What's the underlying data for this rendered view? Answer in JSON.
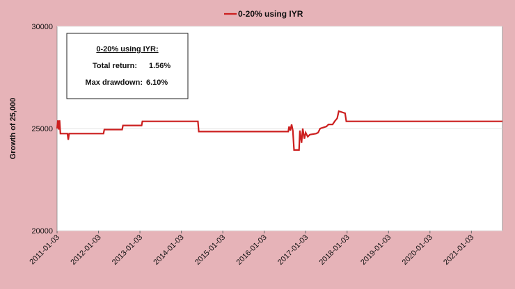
{
  "chart_data": {
    "type": "line",
    "y_label": "Growth of 25,000",
    "xlim": [
      2011.0,
      2021.75
    ],
    "xticks": [
      {
        "value": 2011.0,
        "label": "2011-01-03"
      },
      {
        "value": 2012.0,
        "label": "2012-01-03"
      },
      {
        "value": 2013.0,
        "label": "2013-01-03"
      },
      {
        "value": 2014.0,
        "label": "2014-01-03"
      },
      {
        "value": 2015.0,
        "label": "2015-01-03"
      },
      {
        "value": 2016.0,
        "label": "2016-01-03"
      },
      {
        "value": 2017.0,
        "label": "2017-01-03"
      },
      {
        "value": 2018.0,
        "label": "2018-01-03"
      },
      {
        "value": 2019.0,
        "label": "2019-01-03"
      },
      {
        "value": 2020.0,
        "label": "2020-01-03"
      },
      {
        "value": 2021.0,
        "label": "2021-01-03"
      }
    ],
    "ylim": [
      20000,
      30000
    ],
    "yticks": [
      20000,
      25000,
      30000
    ],
    "grid": true,
    "legend": "top",
    "x": [
      2011.0,
      2011.02,
      2011.04,
      2011.06,
      2011.08,
      2011.25,
      2011.27,
      2011.29,
      2012.12,
      2012.14,
      2012.57,
      2012.59,
      2013.04,
      2013.06,
      2014.4,
      2014.42,
      2016.58,
      2016.6,
      2016.63,
      2016.66,
      2016.69,
      2016.72,
      2016.84,
      2016.86,
      2016.9,
      2016.93,
      2016.97,
      2017.0,
      2017.05,
      2017.1,
      2017.25,
      2017.3,
      2017.35,
      2017.5,
      2017.55,
      2017.65,
      2017.7,
      2017.76,
      2017.8,
      2017.95,
      2017.98,
      2021.75
    ],
    "series": [
      {
        "name": "0-20% using IYR",
        "color": "#cc1f1f",
        "values": [
          25000,
          25400,
          24950,
          25400,
          24750,
          24750,
          24450,
          24750,
          24750,
          24950,
          24950,
          25150,
          25150,
          25350,
          25350,
          24850,
          24850,
          25100,
          24900,
          25200,
          24900,
          23950,
          23950,
          24900,
          24300,
          25000,
          24500,
          24800,
          24600,
          24700,
          24750,
          24800,
          25000,
          25100,
          25200,
          25200,
          25350,
          25500,
          25850,
          25750,
          25350,
          25350
        ]
      }
    ],
    "inset": {
      "title": "0-20% using IYR:",
      "total_return_label": "Total return:",
      "total_return": "1.56%",
      "max_drawdown_label": "Max drawdown:",
      "max_drawdown": "6.10%",
      "max_drawdown_color": "#d01010"
    }
  }
}
